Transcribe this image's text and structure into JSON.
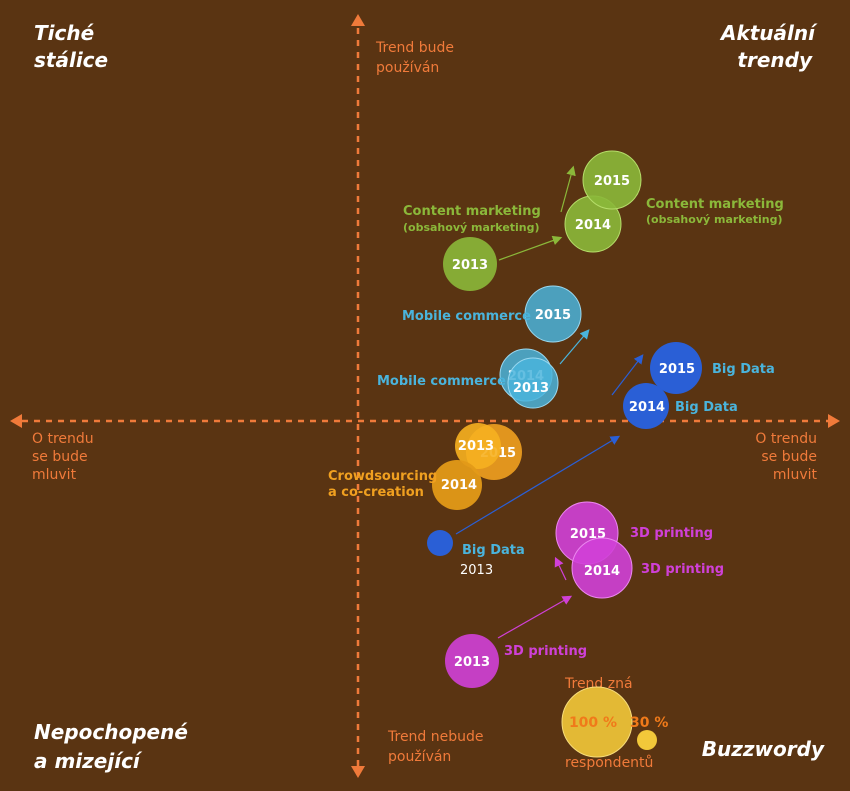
{
  "quadrants": {
    "top_left": [
      "Tiché",
      "stálice"
    ],
    "top_right": [
      "Aktuální",
      "trendy"
    ],
    "bottom_left": [
      "Nepochopené",
      "a mizející"
    ],
    "bottom_right": [
      "Buzzwordy"
    ]
  },
  "axes": {
    "top": [
      "Trend bude",
      "používán"
    ],
    "bottom": [
      "Trend nebude",
      "používán"
    ],
    "left": [
      "O trendu",
      "se bude",
      "mluvit"
    ],
    "right": [
      "O trendu",
      "se bude",
      "mluvit"
    ]
  },
  "legend": {
    "top": "Trend zná",
    "big_value": "100 %",
    "small_value": "30 %",
    "bottom": "respondentů"
  },
  "colors": {
    "background": "#5a3412",
    "axis": "#f07a3a",
    "content_marketing": "#8bb83a",
    "mobile_commerce": "#4ab4dc",
    "big_data": "#2a5fd6",
    "crowdsourcing": "#f0a020",
    "printing_3d": "#d040d8",
    "legend": "#f2c83a"
  },
  "chart_data": {
    "type": "scatter",
    "description": "Bubble chart of trend awareness and expected use, 2013–2015",
    "series": [
      {
        "name": "Content marketing",
        "color": "#8bb83a",
        "points": [
          {
            "year": "2013",
            "awareness": 70,
            "use": 5.8
          },
          {
            "year": "2014",
            "awareness": 92,
            "use": 7.6
          },
          {
            "year": "2015",
            "awareness": 94,
            "use": 8.9
          }
        ]
      },
      {
        "name": "Mobile commerce",
        "color": "#4ab4dc",
        "points": [
          {
            "year": "2013",
            "awareness": 64,
            "use": 1.4
          },
          {
            "year": "2014",
            "awareness": 62,
            "use": 1.9
          },
          {
            "year": "2015",
            "awareness": 71,
            "use": 4.5
          }
        ]
      },
      {
        "name": "Big Data",
        "color": "#2a5fd6",
        "points": [
          {
            "year": "2013",
            "awareness": 30,
            "use": -5.1
          },
          {
            "year": "2014",
            "awareness": 60,
            "use": 0.5
          },
          {
            "year": "2015",
            "awareness": 69,
            "use": 2.3
          }
        ]
      },
      {
        "name": "Crowdsourcing a co-creation",
        "color": "#f0a020",
        "points": [
          {
            "year": "2013",
            "awareness": 49,
            "use": -1.2
          },
          {
            "year": "2014",
            "awareness": 46,
            "use": -2.9
          },
          {
            "year": "2015",
            "awareness": 53,
            "use": -1.4
          }
        ]
      },
      {
        "name": "3D printing",
        "color": "#d040d8",
        "points": [
          {
            "year": "2013",
            "awareness": 50,
            "use": -10.3
          },
          {
            "year": "2014",
            "awareness": 83,
            "use": -6.0
          },
          {
            "year": "2015",
            "awareness": 81,
            "use": -4.5
          }
        ]
      }
    ],
    "legend_sizes": [
      100,
      30
    ]
  },
  "labels": {
    "cm_left": [
      "Content marketing",
      "(obsahový marketing)"
    ],
    "cm_right": [
      "Content marketing",
      "(obsahový marketing)"
    ],
    "mc_top": "Mobile commerce",
    "mc_bottom": "Mobile commerce",
    "bd_2015": "Big Data",
    "bd_2014": "Big Data",
    "bd_2013": [
      "Big Data",
      "2013"
    ],
    "cs": [
      "Crowdsourcing",
      "a co-creation"
    ],
    "p3d_2015": "3D printing",
    "p3d_2014": "3D printing",
    "p3d_2013": "3D printing",
    "years": {
      "y2013": "2013",
      "y2014": "2014",
      "y2015": "2015"
    }
  }
}
